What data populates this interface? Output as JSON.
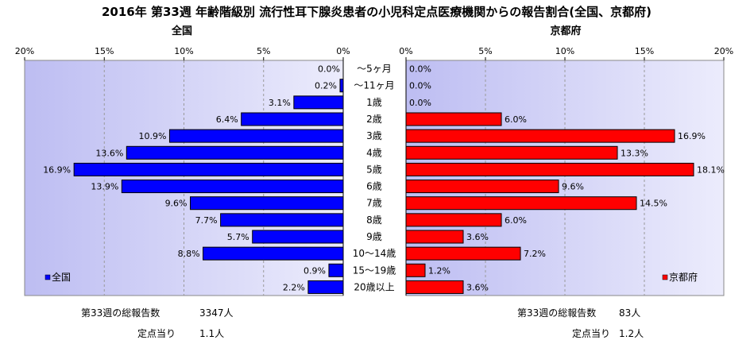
{
  "chart_data": {
    "type": "bar",
    "title": "2016年 第33週 年齢階級別 流行性耳下腺炎患者の小児科定点医療機関からの報告割合(全国、京都府)",
    "categories": [
      "～5ヶ月",
      "～11ヶ月",
      "1歳",
      "2歳",
      "3歳",
      "4歳",
      "5歳",
      "6歳",
      "7歳",
      "8歳",
      "9歳",
      "10～14歳",
      "15～19歳",
      "20歳以上"
    ],
    "tick_labels": [
      "0%",
      "5%",
      "10%",
      "15%",
      "20%"
    ],
    "xlim": [
      0,
      20
    ],
    "grid": true,
    "series": [
      {
        "name": "全国",
        "panel_title": "全国",
        "color": "#0000ff",
        "values": [
          0.0,
          0.2,
          3.1,
          6.4,
          10.9,
          13.6,
          16.9,
          13.9,
          9.6,
          7.7,
          5.7,
          8.8,
          0.9,
          2.2
        ],
        "value_labels": [
          "0.0%",
          "0.2%",
          "3.1%",
          "6.4%",
          "10.9%",
          "13.6%",
          "16.9%",
          "13.9%",
          "9.6%",
          "7.7%",
          "5.7%",
          "8.8%",
          "0.9%",
          "2.2%"
        ],
        "legend_position": "bottom-left",
        "total_label": "第33週の総報告数",
        "total_value": "3347人",
        "per_site_label": "定点当り",
        "per_site_value": "1.1人"
      },
      {
        "name": "京都府",
        "panel_title": "京都府",
        "color": "#ff0000",
        "values": [
          0.0,
          0.0,
          0.0,
          6.0,
          16.9,
          13.3,
          18.1,
          9.6,
          14.5,
          6.0,
          3.6,
          7.2,
          1.2,
          3.6
        ],
        "value_labels": [
          "0.0%",
          "0.0%",
          "0.0%",
          "6.0%",
          "16.9%",
          "13.3%",
          "18.1%",
          "9.6%",
          "14.5%",
          "6.0%",
          "3.6%",
          "7.2%",
          "1.2%",
          "3.6%"
        ],
        "legend_position": "bottom-right",
        "total_label": "第33週の総報告数",
        "total_value": "83人",
        "per_site_label": "定点当り",
        "per_site_value": "1.2人"
      }
    ]
  }
}
